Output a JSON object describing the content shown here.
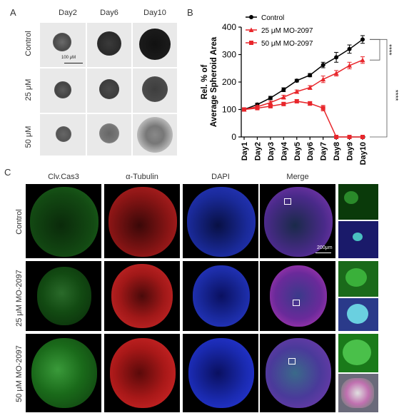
{
  "panel_letters": {
    "a": "A",
    "b": "B",
    "c": "C"
  },
  "panel_a": {
    "columns": [
      "Day2",
      "Day6",
      "Day10"
    ],
    "rows": [
      "Control",
      "25 μM",
      "50 μM"
    ],
    "scale_bar": "100 μM"
  },
  "panel_c": {
    "columns": [
      "Clv.Cas3",
      "α-Tubulin",
      "DAPI",
      "Merge"
    ],
    "rows": [
      "Control",
      "25 μM MO-2097",
      "50 μM MO-2097"
    ],
    "scale_bar": "200μm"
  },
  "chart_data": {
    "type": "line",
    "ylabel": "Rel. % of\nAverage Spheroid Area",
    "xlabel": "",
    "categories": [
      "Day1",
      "Day2",
      "Day3",
      "Day4",
      "Day5",
      "Day6",
      "Day7",
      "Day8",
      "Day9",
      "Day10"
    ],
    "ylim": [
      0,
      400
    ],
    "yticks": [
      0,
      100,
      200,
      300,
      400
    ],
    "legend_position": "top-left",
    "series": [
      {
        "name": "Control",
        "color": "#000000",
        "marker": "circle",
        "values": [
          100,
          118,
          142,
          172,
          205,
          225,
          262,
          290,
          320,
          355
        ],
        "errors": [
          4,
          5,
          6,
          7,
          5,
          6,
          10,
          18,
          15,
          14
        ]
      },
      {
        "name": "25 μM MO-2097",
        "color": "#e8262b",
        "marker": "triangle",
        "values": [
          100,
          110,
          125,
          145,
          165,
          180,
          210,
          232,
          260,
          280
        ],
        "errors": [
          4,
          5,
          6,
          7,
          6,
          7,
          12,
          10,
          12,
          12
        ]
      },
      {
        "name": "50 μM MO-2097",
        "color": "#e8262b",
        "marker": "square",
        "values": [
          100,
          105,
          112,
          120,
          130,
          122,
          105,
          0,
          0,
          0
        ],
        "errors": [
          3,
          4,
          5,
          6,
          6,
          7,
          10,
          0,
          0,
          0
        ]
      }
    ],
    "significance": [
      "****",
      "****"
    ]
  }
}
